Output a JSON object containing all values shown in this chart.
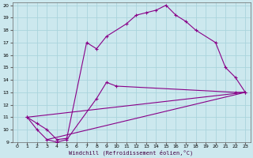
{
  "xlabel": "Windchill (Refroidissement éolien,°C)",
  "bg_color": "#cce8ee",
  "grid_color": "#aad4dd",
  "line_color": "#880088",
  "xlim": [
    -0.5,
    23.5
  ],
  "ylim": [
    9,
    20.2
  ],
  "xticks": [
    0,
    1,
    2,
    3,
    4,
    5,
    6,
    7,
    8,
    9,
    10,
    11,
    12,
    13,
    14,
    15,
    16,
    17,
    18,
    19,
    20,
    21,
    22,
    23
  ],
  "yticks": [
    9,
    10,
    11,
    12,
    13,
    14,
    15,
    16,
    17,
    18,
    19,
    20
  ],
  "line1_x": [
    1,
    2,
    3,
    4,
    5,
    7,
    8,
    9,
    11,
    12,
    13,
    14,
    15,
    16,
    17,
    18,
    20,
    21,
    22,
    23
  ],
  "line1_y": [
    11,
    10.5,
    10,
    9.2,
    9.3,
    17.0,
    16.5,
    17.5,
    18.5,
    19.2,
    19.4,
    19.6,
    20.0,
    19.2,
    18.7,
    18.0,
    17.0,
    15.0,
    14.2,
    13.0
  ],
  "line2_x": [
    1,
    2,
    3,
    4,
    5,
    8,
    9,
    10,
    22,
    23
  ],
  "line2_y": [
    11,
    10,
    9.2,
    9.0,
    9.2,
    12.5,
    13.8,
    13.5,
    13.0,
    13.0
  ],
  "line3_x": [
    1,
    23
  ],
  "line3_y": [
    11,
    13
  ],
  "line4_x": [
    3,
    23
  ],
  "line4_y": [
    9.2,
    13
  ]
}
